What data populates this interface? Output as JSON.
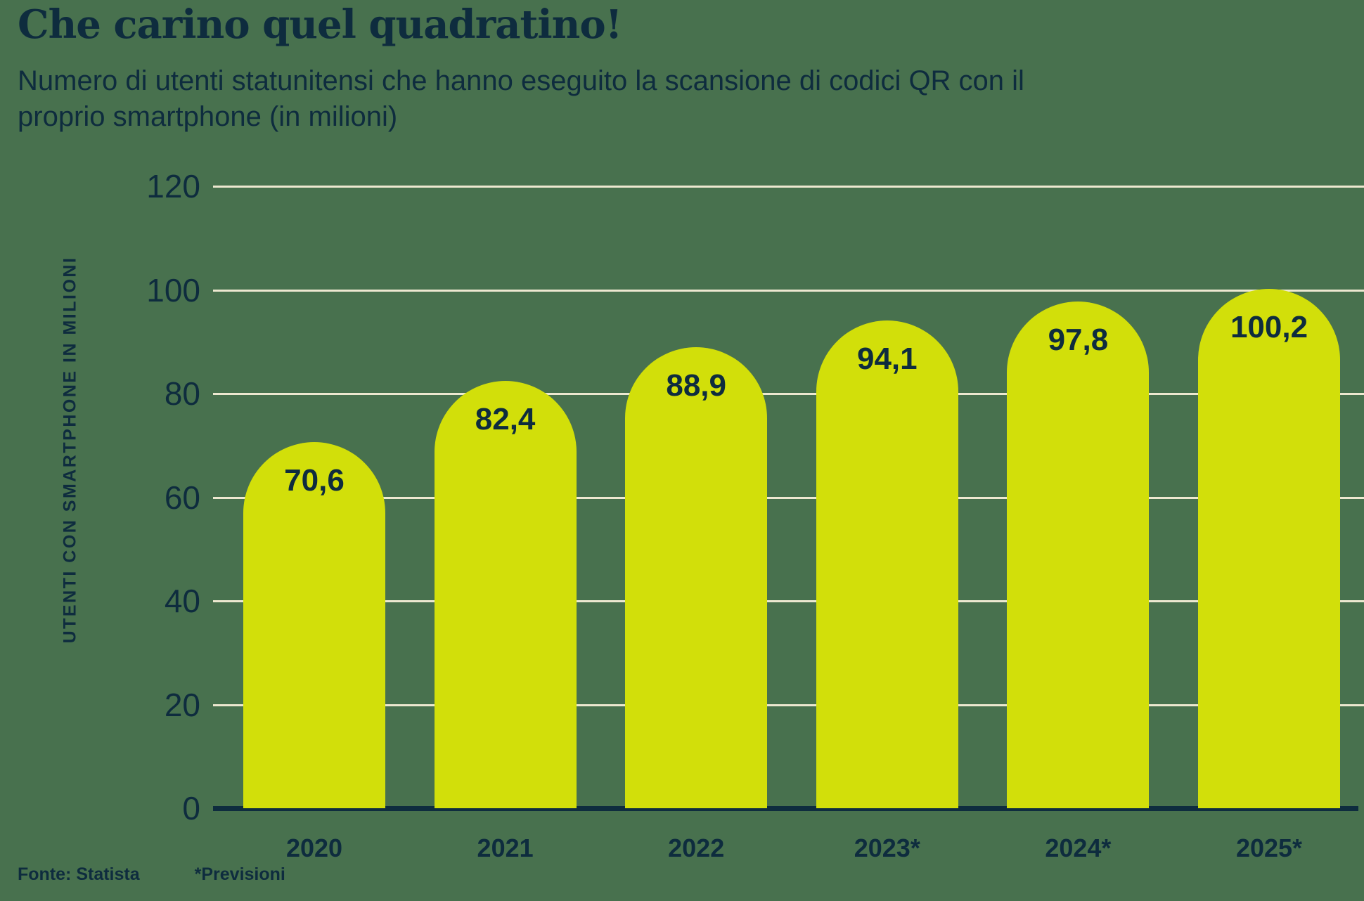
{
  "header": {
    "title": "Che carino quel quadratino!",
    "subtitle": "Numero di utenti statunitensi che hanno eseguito la scansione di codici QR con il proprio smartphone (in milioni)",
    "subtitle_line1": "Numero di utenti statunitensi che hanno eseguito la scansione di codici QR con il",
    "subtitle_line2": "proprio smartphone (in milioni)"
  },
  "footer": {
    "source": "Fonte: Statista",
    "forecast_note": "*Previsioni"
  },
  "colors": {
    "background": "#48714E",
    "bar": "#D2DF0A",
    "text": "#0E2C3E",
    "gridline": "#EDE8D0"
  },
  "chart_data": {
    "type": "bar",
    "title": "Che carino quel quadratino!",
    "subtitle": "Numero di utenti statunitensi che hanno eseguito la scansione di codici QR con il proprio smartphone (in milioni)",
    "categories": [
      "2020",
      "2021",
      "2022",
      "2023*",
      "2024*",
      "2025*"
    ],
    "values": [
      70.6,
      82.4,
      88.9,
      94.1,
      97.8,
      100.2
    ],
    "value_labels": [
      "70,6",
      "82,4",
      "88,9",
      "94,1",
      "97,8",
      "100,2"
    ],
    "xlabel": "",
    "ylabel": "UTENTI CON SMARTPHONE IN MILIONI",
    "ylim": [
      0,
      120
    ],
    "yticks": [
      0,
      20,
      40,
      60,
      80,
      100,
      120
    ],
    "grid": "horizontal",
    "legend": "none",
    "bar_style": "rounded-top",
    "source": "Fonte: Statista",
    "footnote": "*Previsioni"
  }
}
